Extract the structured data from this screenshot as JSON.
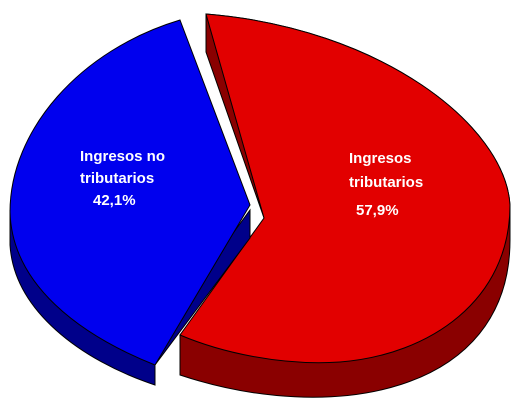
{
  "chart_data": {
    "type": "pie",
    "title": "",
    "slices": [
      {
        "label_lines": [
          "Ingresos",
          "tributarios"
        ],
        "value_label": "57,9%",
        "value": 57.9,
        "color": "#e20000",
        "side_color": "#8a0000",
        "exploded": false
      },
      {
        "label_lines": [
          "Ingresos no",
          "tributarios"
        ],
        "value_label": "42,1%",
        "value": 42.1,
        "color": "#0000ee",
        "side_color": "#00008a",
        "exploded": true
      }
    ],
    "style": "3d-exploded"
  }
}
